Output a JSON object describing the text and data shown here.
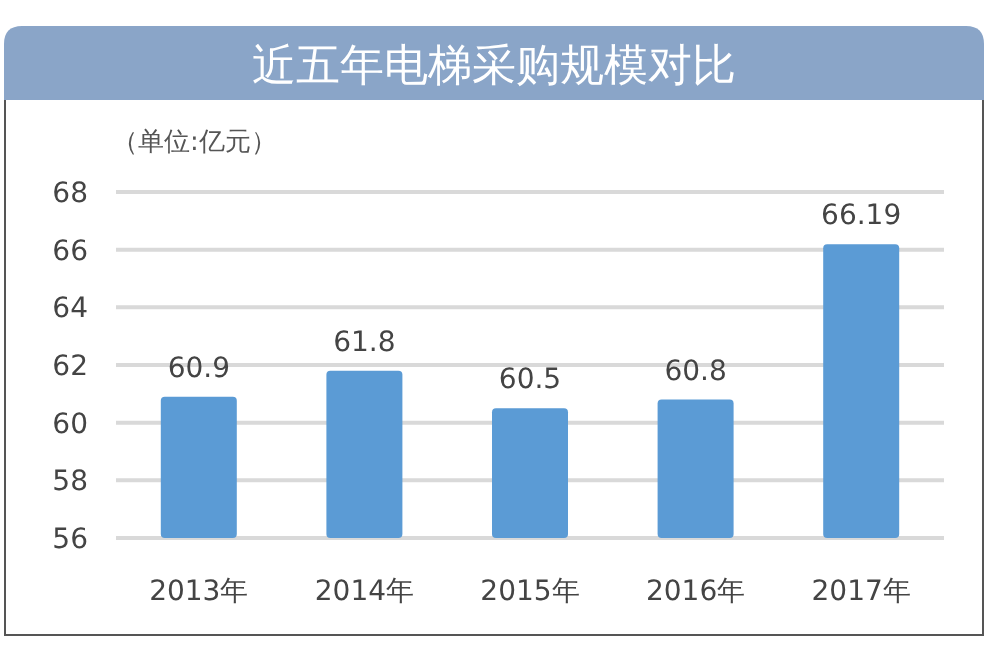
{
  "chart_data": {
    "type": "bar",
    "title": "近五年电梯采购规模对比",
    "ylabel": "（单位:亿元）",
    "categories": [
      "2013年",
      "2014年",
      "2015年",
      "2016年",
      "2017年"
    ],
    "values": [
      60.9,
      61.8,
      60.5,
      60.8,
      66.19
    ],
    "color": "#5b9bd5",
    "ylim": [
      56,
      68
    ],
    "yticks": [
      56,
      58,
      60,
      62,
      64,
      66,
      68
    ],
    "grid": "y",
    "data_labels": true
  }
}
